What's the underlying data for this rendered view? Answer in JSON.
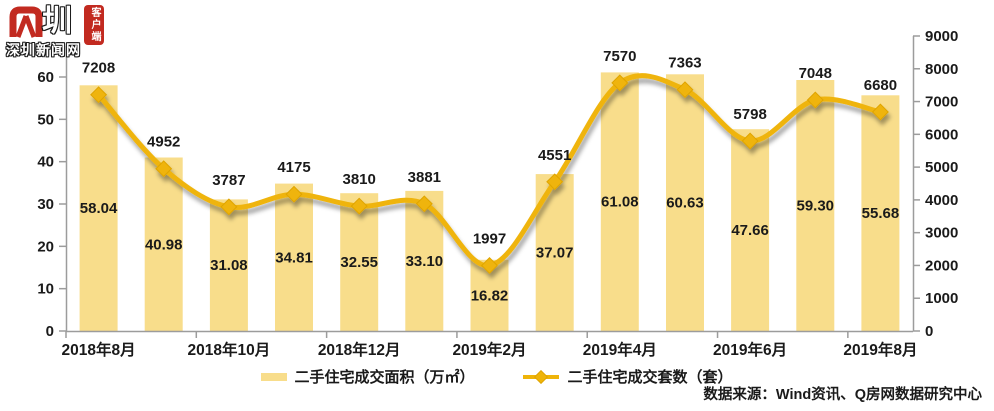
{
  "logo": {
    "brand_mark": "圳",
    "brand_name": "深圳新闻网",
    "badge": "客户端"
  },
  "chart_data": {
    "type": "bar+line",
    "title": "",
    "n_categories": 13,
    "x_labels": [
      "2018年8月",
      "2018年10月",
      "2018年12月",
      "2019年2月",
      "2019年4月",
      "2019年6月",
      "2019年8月"
    ],
    "x_label_every": 2,
    "series": [
      {
        "name": "二手住宅成交面积（万㎡）",
        "type": "bar",
        "axis": "left",
        "color": "#f8dd8b",
        "label_decimals": 2,
        "values": [
          58.04,
          40.98,
          31.08,
          34.81,
          32.55,
          33.1,
          16.82,
          37.07,
          61.08,
          60.63,
          47.66,
          59.3,
          55.68
        ]
      },
      {
        "name": "二手住宅成交套数（套）",
        "type": "line",
        "axis": "right",
        "color": "#efb409",
        "marker": "diamond",
        "label_decimals": 0,
        "values": [
          7208,
          4952,
          3787,
          4175,
          3810,
          3881,
          1997,
          4551,
          7570,
          7363,
          5798,
          7048,
          6680
        ]
      }
    ],
    "left_axis": {
      "min": 0,
      "max": 60,
      "step": 10,
      "ticks": [
        "0",
        "10",
        "20",
        "30",
        "40",
        "50",
        "60"
      ]
    },
    "right_axis": {
      "min": 0,
      "max": 9000,
      "step": 1000,
      "ticks": [
        "0",
        "1000",
        "2000",
        "3000",
        "4000",
        "5000",
        "6000",
        "7000",
        "8000",
        "9000"
      ]
    },
    "grid": false,
    "legend_position": "bottom"
  },
  "source_note": "数据来源：Wind资讯、Q房网数据研究中心"
}
